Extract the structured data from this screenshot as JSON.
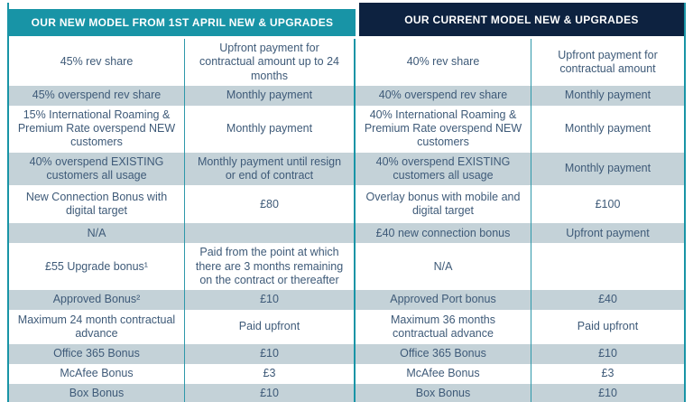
{
  "colors": {
    "teal_accent": "#1894A6",
    "navy_accent": "#0D2240",
    "band_fill": "#C4D2D8",
    "body_text": "#3E5A78",
    "header_text": "#FFFFFF"
  },
  "left_table": {
    "header": "OUR NEW MODEL FROM 1ST APRIL NEW & UPGRADES",
    "rows": [
      {
        "desc": "45% rev share",
        "value": "Upfront payment for contractual amount up to 24 months"
      },
      {
        "desc": "45% overspend rev share",
        "value": "Monthly payment"
      },
      {
        "desc": "15% International Roaming & Premium Rate overspend NEW customers",
        "value": "Monthly payment"
      },
      {
        "desc": "40% overspend EXISTING customers all usage",
        "value": "Monthly payment until resign or end of contract"
      },
      {
        "desc": "New Connection Bonus with digital target",
        "value": "£80"
      },
      {
        "desc": "N/A",
        "value": ""
      },
      {
        "desc": "£55 Upgrade bonus¹",
        "value": "Paid from the point at which there are 3 months remaining on the contract or thereafter"
      },
      {
        "desc": "Approved Bonus²",
        "value": "£10"
      },
      {
        "desc": "Maximum 24 month contractual advance",
        "value": "Paid upfront"
      },
      {
        "desc": "Office 365 Bonus",
        "value": "£10"
      },
      {
        "desc": "McAfee Bonus",
        "value": "£3"
      },
      {
        "desc": "Box Bonus",
        "value": "£10"
      }
    ]
  },
  "right_table": {
    "header": "OUR CURRENT MODEL NEW & UPGRADES",
    "rows": [
      {
        "desc": "40% rev share",
        "value": "Upfront payment for contractual amount"
      },
      {
        "desc": "40% overspend rev share",
        "value": "Monthly payment"
      },
      {
        "desc": "40% International Roaming & Premium Rate overspend NEW customers",
        "value": "Monthly payment"
      },
      {
        "desc": "40% overspend EXISTING customers all usage",
        "value": "Monthly payment"
      },
      {
        "desc": "Overlay bonus with mobile and digital target",
        "value": "£100"
      },
      {
        "desc": "£40 new connection bonus",
        "value": "Upfront payment"
      },
      {
        "desc": "N/A",
        "value": ""
      },
      {
        "desc": "Approved Port bonus",
        "value": "£40"
      },
      {
        "desc": "Maximum 36 months contractual advance",
        "value": "Paid upfront"
      },
      {
        "desc": "Office 365 Bonus",
        "value": "£10"
      },
      {
        "desc": "McAfee Bonus",
        "value": "£3"
      },
      {
        "desc": "Box Bonus",
        "value": "£10"
      }
    ]
  }
}
